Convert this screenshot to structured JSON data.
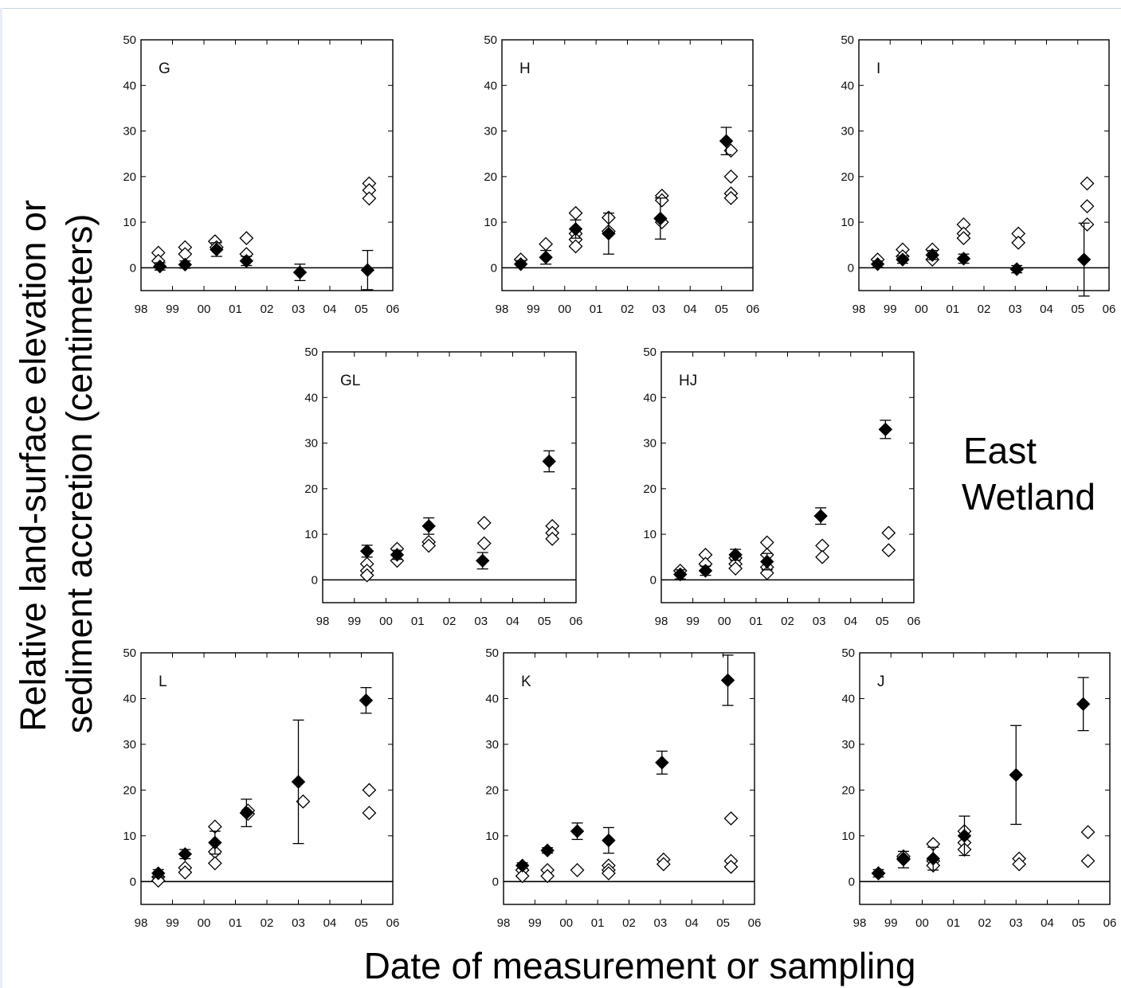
{
  "figure": {
    "ylabel_line1": "Relative land-surface elevation or",
    "ylabel_line2": "sediment accretion (centimeters)",
    "xlabel": "Date of measurement or sampling",
    "annotation_line1": "East",
    "annotation_line2": "Wetland"
  },
  "chart_data": [
    {
      "type": "scatter",
      "panel": "G",
      "xlim": [
        98,
        106
      ],
      "ylim": [
        -5,
        50
      ],
      "x_ticks": [
        "98",
        "99",
        "00",
        "01",
        "02",
        "03",
        "04",
        "05",
        "06"
      ],
      "y_ticks": [
        0,
        10,
        20,
        30,
        40,
        50
      ],
      "zero_line": true,
      "filled": [
        {
          "x": 98.6,
          "y": 0.3,
          "err": 0.8
        },
        {
          "x": 99.4,
          "y": 0.7,
          "err": 0.8
        },
        {
          "x": 100.4,
          "y": 4.0,
          "err": 1.5
        },
        {
          "x": 101.35,
          "y": 1.5,
          "err": 1.0
        },
        {
          "x": 103.05,
          "y": -1.0,
          "err": 1.8
        },
        {
          "x": 105.2,
          "y": -0.5,
          "err": 4.3
        }
      ],
      "open": [
        {
          "x": 98.55,
          "y": 3.3
        },
        {
          "x": 98.55,
          "y": 1.5
        },
        {
          "x": 99.4,
          "y": 4.5
        },
        {
          "x": 99.4,
          "y": 3.0
        },
        {
          "x": 100.35,
          "y": 5.8
        },
        {
          "x": 100.4,
          "y": 4.5
        },
        {
          "x": 101.35,
          "y": 6.5
        },
        {
          "x": 101.35,
          "y": 3.0
        },
        {
          "x": 105.25,
          "y": 18.5
        },
        {
          "x": 105.25,
          "y": 17.0
        },
        {
          "x": 105.25,
          "y": 15.2
        }
      ]
    },
    {
      "type": "scatter",
      "panel": "H",
      "xlim": [
        98,
        106
      ],
      "ylim": [
        -5,
        50
      ],
      "x_ticks": [
        "98",
        "99",
        "00",
        "01",
        "02",
        "03",
        "04",
        "05",
        "06"
      ],
      "y_ticks": [
        0,
        10,
        20,
        30,
        40,
        50
      ],
      "zero_line": true,
      "filled": [
        {
          "x": 98.6,
          "y": 0.8,
          "err": 0.8
        },
        {
          "x": 99.4,
          "y": 2.3,
          "err": 1.5
        },
        {
          "x": 100.35,
          "y": 8.5,
          "err": 2.0
        },
        {
          "x": 101.4,
          "y": 7.5,
          "err": 4.5
        },
        {
          "x": 103.05,
          "y": 10.8,
          "err": 4.5
        },
        {
          "x": 105.15,
          "y": 27.8,
          "err": 3.0
        }
      ],
      "open": [
        {
          "x": 98.6,
          "y": 1.8
        },
        {
          "x": 99.4,
          "y": 5.2
        },
        {
          "x": 100.35,
          "y": 12.0
        },
        {
          "x": 100.35,
          "y": 7.5
        },
        {
          "x": 100.35,
          "y": 6.2
        },
        {
          "x": 100.35,
          "y": 4.7
        },
        {
          "x": 101.4,
          "y": 11.0
        },
        {
          "x": 101.4,
          "y": 8.0
        },
        {
          "x": 103.1,
          "y": 15.8
        },
        {
          "x": 103.1,
          "y": 14.8
        },
        {
          "x": 103.1,
          "y": 10.0
        },
        {
          "x": 105.3,
          "y": 25.7
        },
        {
          "x": 105.3,
          "y": 20.0
        },
        {
          "x": 105.3,
          "y": 16.3
        },
        {
          "x": 105.3,
          "y": 15.3
        }
      ]
    },
    {
      "type": "scatter",
      "panel": "I",
      "xlim": [
        98,
        106
      ],
      "ylim": [
        -5,
        50
      ],
      "x_ticks": [
        "98",
        "99",
        "00",
        "01",
        "02",
        "03",
        "04",
        "05",
        "06"
      ],
      "y_ticks": [
        0,
        10,
        20,
        30,
        40,
        50
      ],
      "zero_line": true,
      "filled": [
        {
          "x": 98.6,
          "y": 0.8,
          "err": 0.7
        },
        {
          "x": 99.4,
          "y": 1.8,
          "err": 0.8
        },
        {
          "x": 100.35,
          "y": 2.8,
          "err": 1.0
        },
        {
          "x": 101.35,
          "y": 2.0,
          "err": 1.0
        },
        {
          "x": 103.05,
          "y": -0.3,
          "err": 0.8
        },
        {
          "x": 105.2,
          "y": 1.8,
          "err": 8.0
        }
      ],
      "open": [
        {
          "x": 98.6,
          "y": 1.8
        },
        {
          "x": 99.4,
          "y": 4.0
        },
        {
          "x": 99.4,
          "y": 2.5
        },
        {
          "x": 100.35,
          "y": 4.0
        },
        {
          "x": 100.35,
          "y": 1.8
        },
        {
          "x": 101.35,
          "y": 9.5
        },
        {
          "x": 101.35,
          "y": 7.5
        },
        {
          "x": 101.35,
          "y": 6.5
        },
        {
          "x": 103.1,
          "y": 7.5
        },
        {
          "x": 103.1,
          "y": 5.5
        },
        {
          "x": 105.3,
          "y": 18.5
        },
        {
          "x": 105.3,
          "y": 13.5
        },
        {
          "x": 105.3,
          "y": 9.5
        }
      ]
    },
    {
      "type": "scatter",
      "panel": "GL",
      "xlim": [
        98,
        106
      ],
      "ylim": [
        -5,
        50
      ],
      "x_ticks": [
        "98",
        "99",
        "00",
        "01",
        "02",
        "03",
        "04",
        "05",
        "06"
      ],
      "y_ticks": [
        0,
        10,
        20,
        30,
        40,
        50
      ],
      "zero_line": true,
      "filled": [
        {
          "x": 99.4,
          "y": 6.3,
          "err": 1.3
        },
        {
          "x": 100.35,
          "y": 5.5,
          "err": 1.0
        },
        {
          "x": 101.35,
          "y": 11.8,
          "err": 1.8
        },
        {
          "x": 103.05,
          "y": 4.2,
          "err": 1.8
        },
        {
          "x": 105.15,
          "y": 26.0,
          "err": 2.3
        }
      ],
      "open": [
        {
          "x": 99.4,
          "y": 3.5
        },
        {
          "x": 99.4,
          "y": 2.0
        },
        {
          "x": 99.4,
          "y": 1.0
        },
        {
          "x": 100.35,
          "y": 6.8
        },
        {
          "x": 100.35,
          "y": 4.2
        },
        {
          "x": 101.35,
          "y": 8.3
        },
        {
          "x": 101.35,
          "y": 7.5
        },
        {
          "x": 103.1,
          "y": 12.5
        },
        {
          "x": 103.1,
          "y": 8.0
        },
        {
          "x": 105.25,
          "y": 11.8
        },
        {
          "x": 105.25,
          "y": 10.3
        },
        {
          "x": 105.25,
          "y": 9.0
        }
      ]
    },
    {
      "type": "scatter",
      "panel": "HJ",
      "xlim": [
        98,
        106
      ],
      "ylim": [
        -5,
        50
      ],
      "x_ticks": [
        "98",
        "99",
        "00",
        "01",
        "02",
        "03",
        "04",
        "05",
        "06"
      ],
      "y_ticks": [
        0,
        10,
        20,
        30,
        40,
        50
      ],
      "zero_line": true,
      "filled": [
        {
          "x": 98.6,
          "y": 1.2,
          "err": 1.0
        },
        {
          "x": 99.4,
          "y": 2.0,
          "err": 1.0
        },
        {
          "x": 100.35,
          "y": 5.5,
          "err": 1.2
        },
        {
          "x": 101.35,
          "y": 4.0,
          "err": 1.8
        },
        {
          "x": 103.05,
          "y": 14.0,
          "err": 1.8
        },
        {
          "x": 105.1,
          "y": 33.0,
          "err": 2.0
        }
      ],
      "open": [
        {
          "x": 98.6,
          "y": 2.0
        },
        {
          "x": 99.4,
          "y": 5.5
        },
        {
          "x": 99.4,
          "y": 3.5
        },
        {
          "x": 100.35,
          "y": 4.8
        },
        {
          "x": 100.35,
          "y": 3.5
        },
        {
          "x": 100.35,
          "y": 2.5
        },
        {
          "x": 101.35,
          "y": 8.2
        },
        {
          "x": 101.35,
          "y": 5.5
        },
        {
          "x": 101.35,
          "y": 2.8
        },
        {
          "x": 101.35,
          "y": 1.5
        },
        {
          "x": 103.1,
          "y": 7.5
        },
        {
          "x": 103.1,
          "y": 5.0
        },
        {
          "x": 105.2,
          "y": 10.3
        },
        {
          "x": 105.2,
          "y": 6.5
        }
      ]
    },
    {
      "type": "scatter",
      "panel": "L",
      "xlim": [
        98,
        106
      ],
      "ylim": [
        -5,
        50
      ],
      "x_ticks": [
        "98",
        "99",
        "00",
        "01",
        "02",
        "03",
        "04",
        "05",
        "06"
      ],
      "y_ticks": [
        0,
        10,
        20,
        30,
        40,
        50
      ],
      "zero_line": true,
      "filled": [
        {
          "x": 98.55,
          "y": 1.8,
          "err": 0.8
        },
        {
          "x": 99.4,
          "y": 6.0,
          "err": 1.0
        },
        {
          "x": 100.35,
          "y": 8.5,
          "err": 2.5
        },
        {
          "x": 101.35,
          "y": 15.0,
          "err": 3.0
        },
        {
          "x": 103.0,
          "y": 21.8,
          "err": 13.5
        },
        {
          "x": 105.15,
          "y": 39.6,
          "err": 2.8
        }
      ],
      "open": [
        {
          "x": 98.55,
          "y": 1.0
        },
        {
          "x": 98.55,
          "y": 0.2
        },
        {
          "x": 99.4,
          "y": 3.0
        },
        {
          "x": 99.4,
          "y": 2.0
        },
        {
          "x": 100.35,
          "y": 12.0
        },
        {
          "x": 100.35,
          "y": 6.5
        },
        {
          "x": 100.35,
          "y": 4.0
        },
        {
          "x": 101.4,
          "y": 15.5
        },
        {
          "x": 101.4,
          "y": 14.8
        },
        {
          "x": 103.15,
          "y": 17.5
        },
        {
          "x": 105.25,
          "y": 20.0
        },
        {
          "x": 105.25,
          "y": 15.0
        }
      ]
    },
    {
      "type": "scatter",
      "panel": "K",
      "xlim": [
        98,
        106
      ],
      "ylim": [
        -5,
        50
      ],
      "x_ticks": [
        "98",
        "99",
        "00",
        "01",
        "02",
        "03",
        "04",
        "05",
        "06"
      ],
      "y_ticks": [
        0,
        10,
        20,
        30,
        40,
        50
      ],
      "zero_line": true,
      "filled": [
        {
          "x": 98.6,
          "y": 3.5,
          "err": 0.6
        },
        {
          "x": 99.4,
          "y": 6.8,
          "err": 0.6
        },
        {
          "x": 100.35,
          "y": 11.0,
          "err": 1.8
        },
        {
          "x": 101.35,
          "y": 9.0,
          "err": 2.8
        },
        {
          "x": 103.05,
          "y": 26.0,
          "err": 2.5
        },
        {
          "x": 105.15,
          "y": 44.0,
          "err": 5.5
        }
      ],
      "open": [
        {
          "x": 98.6,
          "y": 2.5
        },
        {
          "x": 98.6,
          "y": 1.2
        },
        {
          "x": 99.4,
          "y": 2.5
        },
        {
          "x": 99.4,
          "y": 1.2
        },
        {
          "x": 100.35,
          "y": 2.5
        },
        {
          "x": 101.35,
          "y": 3.5
        },
        {
          "x": 101.35,
          "y": 2.5
        },
        {
          "x": 101.35,
          "y": 1.8
        },
        {
          "x": 103.1,
          "y": 4.8
        },
        {
          "x": 103.1,
          "y": 3.8
        },
        {
          "x": 105.25,
          "y": 13.8
        },
        {
          "x": 105.25,
          "y": 4.5
        },
        {
          "x": 105.25,
          "y": 3.2
        }
      ]
    },
    {
      "type": "scatter",
      "panel": "J",
      "xlim": [
        98,
        106
      ],
      "ylim": [
        -5,
        50
      ],
      "x_ticks": [
        "98",
        "99",
        "00",
        "01",
        "02",
        "03",
        "04",
        "05",
        "06"
      ],
      "y_ticks": [
        0,
        10,
        20,
        30,
        40,
        50
      ],
      "zero_line": true,
      "filled": [
        {
          "x": 98.6,
          "y": 1.8,
          "err": 0.8
        },
        {
          "x": 99.4,
          "y": 4.8,
          "err": 1.8
        },
        {
          "x": 100.35,
          "y": 5.0,
          "err": 2.5
        },
        {
          "x": 101.35,
          "y": 10.0,
          "err": 4.3
        },
        {
          "x": 103.0,
          "y": 23.3,
          "err": 10.8
        },
        {
          "x": 105.15,
          "y": 38.8,
          "err": 5.8
        }
      ],
      "open": [
        {
          "x": 98.6,
          "y": 1.8
        },
        {
          "x": 99.4,
          "y": 5.5
        },
        {
          "x": 99.4,
          "y": 5.0
        },
        {
          "x": 100.35,
          "y": 8.2
        },
        {
          "x": 100.35,
          "y": 4.5
        },
        {
          "x": 100.35,
          "y": 3.5
        },
        {
          "x": 101.35,
          "y": 11.0
        },
        {
          "x": 101.35,
          "y": 8.5
        },
        {
          "x": 101.35,
          "y": 7.0
        },
        {
          "x": 103.1,
          "y": 5.0
        },
        {
          "x": 103.1,
          "y": 3.8
        },
        {
          "x": 105.3,
          "y": 10.8
        },
        {
          "x": 105.3,
          "y": 4.5
        }
      ]
    }
  ]
}
